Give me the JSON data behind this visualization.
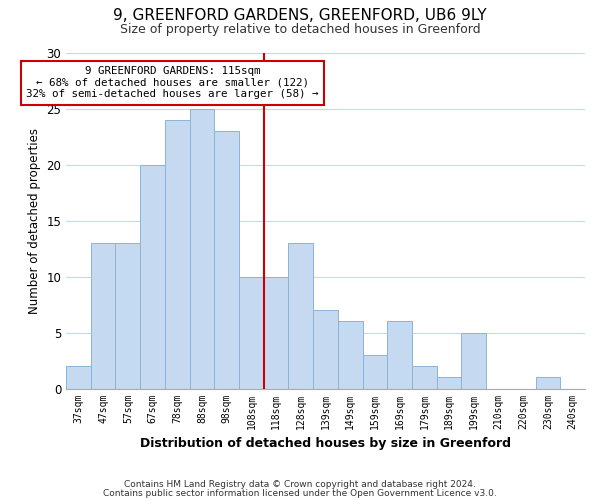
{
  "title": "9, GREENFORD GARDENS, GREENFORD, UB6 9LY",
  "subtitle": "Size of property relative to detached houses in Greenford",
  "xlabel": "Distribution of detached houses by size in Greenford",
  "ylabel": "Number of detached properties",
  "bar_labels": [
    "37sqm",
    "47sqm",
    "57sqm",
    "67sqm",
    "78sqm",
    "88sqm",
    "98sqm",
    "108sqm",
    "118sqm",
    "128sqm",
    "139sqm",
    "149sqm",
    "159sqm",
    "169sqm",
    "179sqm",
    "189sqm",
    "199sqm",
    "210sqm",
    "220sqm",
    "230sqm",
    "240sqm"
  ],
  "bar_values": [
    2,
    13,
    13,
    20,
    24,
    25,
    23,
    10,
    10,
    13,
    7,
    6,
    3,
    6,
    2,
    1,
    5,
    0,
    0,
    1,
    0
  ],
  "bar_color": "#c5d9f0",
  "bar_edge_color": "#8ab4d8",
  "vline_index": 8,
  "vline_color": "#cc0000",
  "ylim": [
    0,
    30
  ],
  "yticks": [
    0,
    5,
    10,
    15,
    20,
    25,
    30
  ],
  "annotation_title": "9 GREENFORD GARDENS: 115sqm",
  "annotation_line1": "← 68% of detached houses are smaller (122)",
  "annotation_line2": "32% of semi-detached houses are larger (58) →",
  "annotation_box_color": "#ffffff",
  "annotation_box_edge_color": "#cc0000",
  "footer_line1": "Contains HM Land Registry data © Crown copyright and database right 2024.",
  "footer_line2": "Contains public sector information licensed under the Open Government Licence v3.0.",
  "background_color": "#ffffff",
  "grid_color": "#c8d8ec",
  "title_fontsize": 11,
  "subtitle_fontsize": 9
}
